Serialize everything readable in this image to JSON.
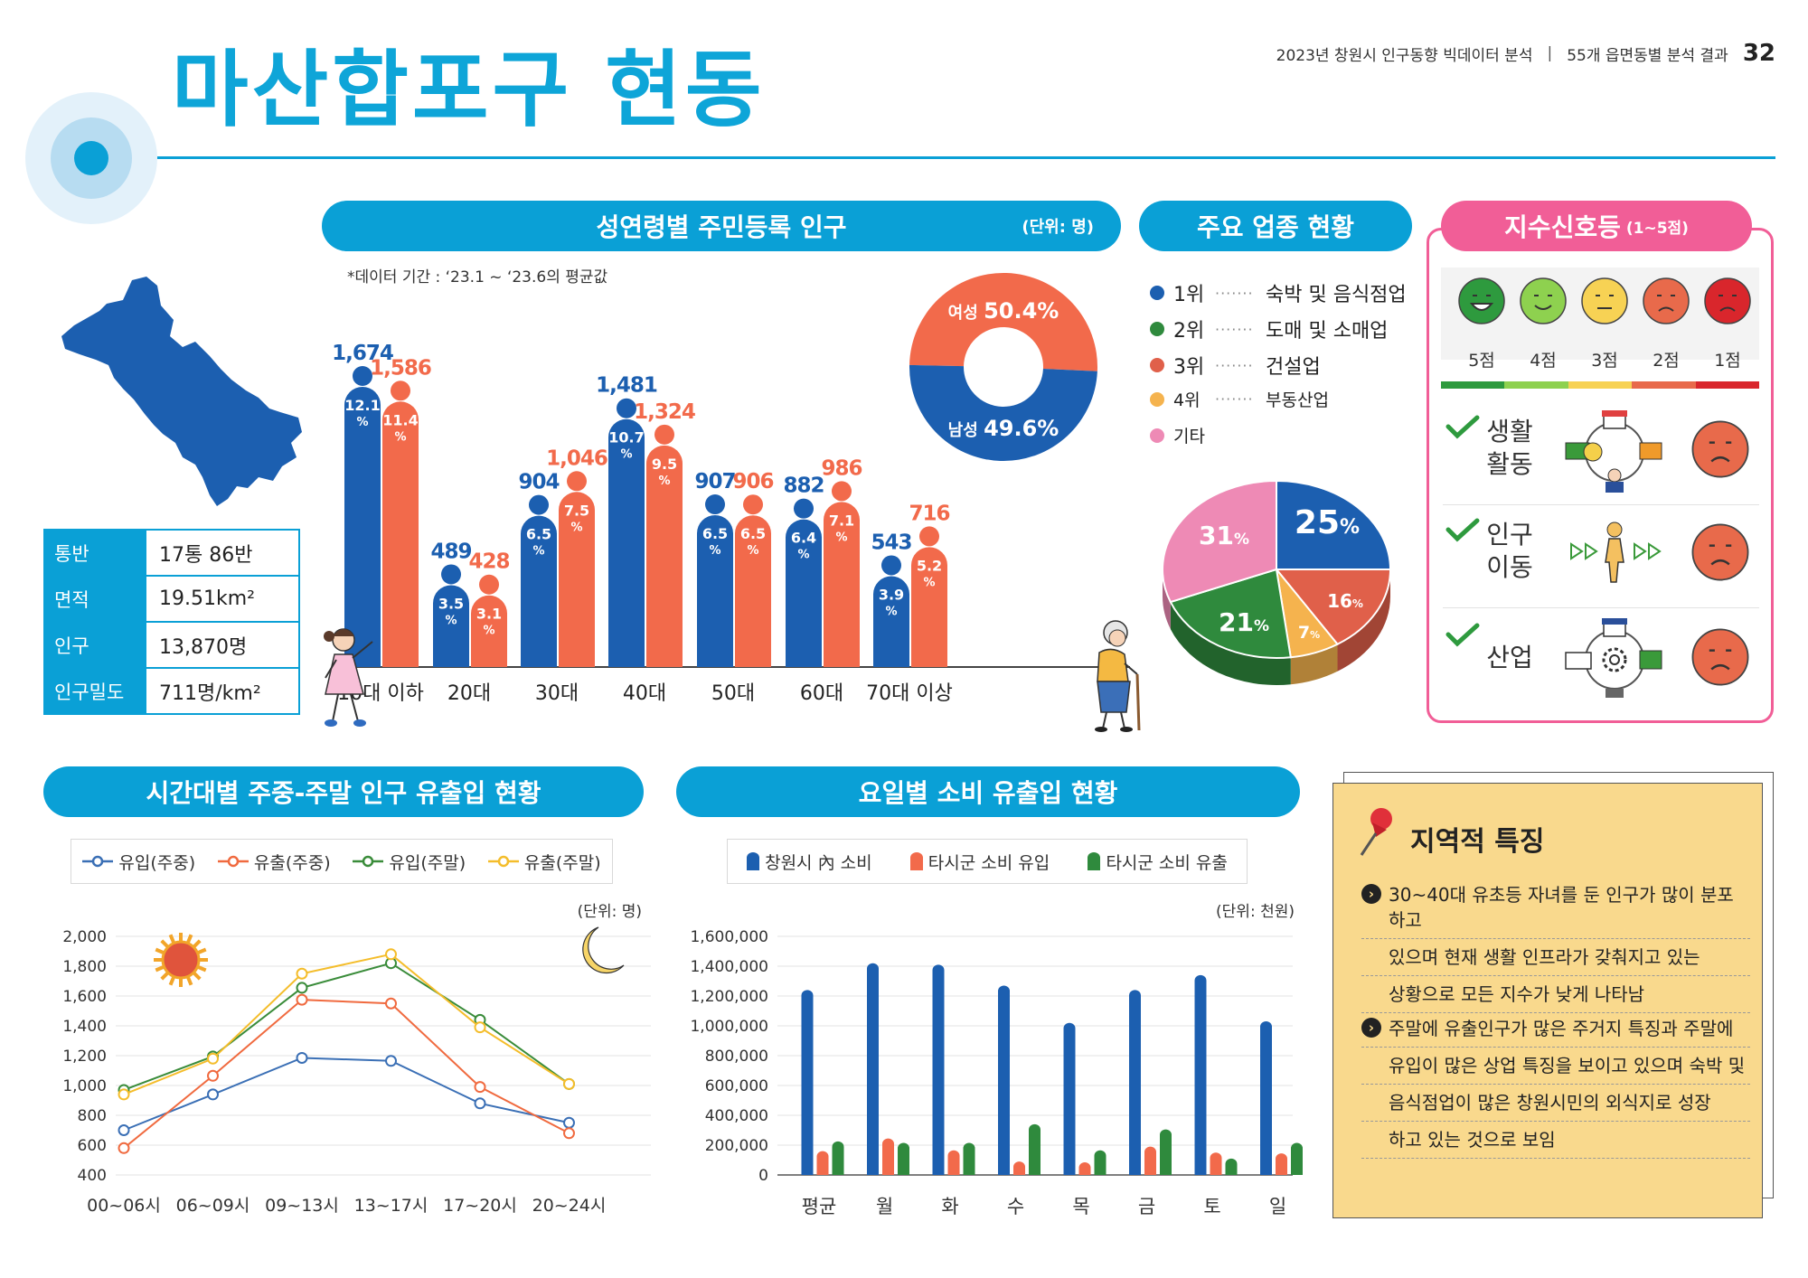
{
  "header": {
    "title": "마산합포구 현동",
    "report": "2023년 창원시 인구동향 빅데이터 분석",
    "separator": "|",
    "section": "55개 읍면동별 분석 결과",
    "page": "32"
  },
  "info": {
    "rows": [
      {
        "key": "통반",
        "value": "17통 86반"
      },
      {
        "key": "면적",
        "value": "19.51km²"
      },
      {
        "key": "인구",
        "value": "13,870명"
      },
      {
        "key": "인구밀도",
        "value": "711명/km²"
      }
    ]
  },
  "population": {
    "title": "성연령별 주민등록 인구",
    "unit": "(단위: 명)",
    "note": "*데이터 기간 : ‘23.1 ~ ‘23.6의 평균값",
    "female_label": "여성",
    "female_pct": "50.4%",
    "male_label": "남성",
    "male_pct": "49.6%"
  },
  "industry": {
    "title": "주요 업종 현황",
    "items": [
      {
        "rank": "1위",
        "name": "숙박 및 음식점업",
        "color": "#1c5fb0"
      },
      {
        "rank": "2위",
        "name": "도매 및 소매업",
        "color": "#2f8a3d"
      },
      {
        "rank": "3위",
        "name": "건설업",
        "color": "#e0604a"
      },
      {
        "rank": "4위",
        "name": "부동산업",
        "color": "#f5b34e"
      },
      {
        "rank": "기타",
        "name": "",
        "color": "#ee8ab5"
      }
    ]
  },
  "signal": {
    "title": "지수신호등",
    "subtitle": "(1~5점)",
    "scores": [
      "5점",
      "4점",
      "3점",
      "2점",
      "1점"
    ],
    "score_colors": [
      "#2e9a3e",
      "#8ed14f",
      "#f7d254",
      "#e86a4b",
      "#d9262c"
    ],
    "rows": [
      {
        "label": "생활\n활동",
        "score": "2점"
      },
      {
        "label": "인구\n이동",
        "score": "2점"
      },
      {
        "label": "산업",
        "score": "2점"
      }
    ]
  },
  "flow": {
    "title": "시간대별 주중-주말 인구 유출입 현황",
    "unit": "(단위: 명)"
  },
  "consumption": {
    "title": "요일별 소비 유출입 현황",
    "unit": "(단위: 천원)"
  },
  "feature": {
    "title": "지역적 특징",
    "para1": [
      "30~40대 유초등 자녀를 둔 인구가 많이 분포하고",
      "있으며 현재 생활 인프라가 갖춰지고 있는",
      "상황으로 모든 지수가 낮게 나타남"
    ],
    "para2": [
      "주말에 유출인구가 많은 주거지 특징과 주말에",
      "유입이 많은 상업 특징을 보이고 있으며 숙박 및",
      "음식점업이 많은  창원시민의 외식지로 성장",
      "하고 있는 것으로 보임"
    ]
  },
  "chart_data": [
    {
      "type": "bar",
      "name": "age-gender",
      "categories": [
        "10대 이하",
        "20대",
        "30대",
        "40대",
        "50대",
        "60대",
        "70대 이상"
      ],
      "series": [
        {
          "name": "남성",
          "color": "#1c5fb0",
          "values": [
            1674,
            489,
            904,
            1481,
            907,
            882,
            543
          ],
          "labels": [
            "1,674",
            "489",
            "904",
            "1,481",
            "907",
            "882",
            "543"
          ],
          "pct": [
            "12.1",
            "3.5",
            "6.5",
            "10.7",
            "6.5",
            "6.4",
            "3.9"
          ]
        },
        {
          "name": "여성",
          "color": "#f26a4b",
          "values": [
            1586,
            428,
            1046,
            1324,
            906,
            986,
            716
          ],
          "labels": [
            "1,586",
            "428",
            "1,046",
            "1,324",
            "906",
            "986",
            "716"
          ],
          "pct": [
            "11.4",
            "3.1",
            "7.5",
            "9.5",
            "6.5",
            "7.1",
            "5.2"
          ]
        }
      ],
      "pct_unit": "%"
    },
    {
      "type": "pie",
      "name": "gender-donut",
      "slices": [
        {
          "label": "여성",
          "value": 50.4,
          "color": "#f26a4b"
        },
        {
          "label": "남성",
          "value": 49.6,
          "color": "#1c5fb0"
        }
      ]
    },
    {
      "type": "pie",
      "name": "industry-pie",
      "slices": [
        {
          "label": "25%",
          "value": 25,
          "color": "#1c5fb0"
        },
        {
          "label": "16%",
          "value": 16,
          "color": "#e0604a"
        },
        {
          "label": "7%",
          "value": 7,
          "color": "#f5b34e"
        },
        {
          "label": "21%",
          "value": 21,
          "color": "#2f8a3d"
        },
        {
          "label": "31%",
          "value": 31,
          "color": "#ee8ab5"
        }
      ]
    },
    {
      "type": "line",
      "name": "time-flow",
      "x": [
        "00~06시",
        "06~09시",
        "09~13시",
        "13~17시",
        "17~20시",
        "20~24시"
      ],
      "ylim": [
        400,
        2000
      ],
      "yticks": [
        "2,000",
        "1,800",
        "1,600",
        "1,400",
        "1,200",
        "1,000",
        "800",
        "600",
        "400"
      ],
      "ytick_values": [
        2000,
        1800,
        1600,
        1400,
        1200,
        1000,
        800,
        600,
        400
      ],
      "series": [
        {
          "name": "유입(주중)",
          "color": "#3a6fb5",
          "values": [
            700,
            940,
            1185,
            1165,
            880,
            750
          ]
        },
        {
          "name": "유출(주중)",
          "color": "#f06a3f",
          "values": [
            580,
            1065,
            1575,
            1550,
            990,
            680
          ]
        },
        {
          "name": "유입(주말)",
          "color": "#3a8c3a",
          "values": [
            970,
            1195,
            1655,
            1820,
            1440,
            1010
          ]
        },
        {
          "name": "유출(주말)",
          "color": "#f4bd2b",
          "values": [
            940,
            1180,
            1750,
            1880,
            1390,
            1010
          ]
        }
      ]
    },
    {
      "type": "bar",
      "name": "weekday-consumption",
      "categories": [
        "평균",
        "월",
        "화",
        "수",
        "목",
        "금",
        "토",
        "일"
      ],
      "ylim": [
        0,
        1600000
      ],
      "yticks": [
        "1,600,000",
        "1,400,000",
        "1,200,000",
        "1,000,000",
        "800,000",
        "600,000",
        "400,000",
        "200,000",
        "0"
      ],
      "ytick_values": [
        1600000,
        1400000,
        1200000,
        1000000,
        800000,
        600000,
        400000,
        200000,
        0
      ],
      "series": [
        {
          "name": "창원시 內 소비",
          "color": "#1c5fb0",
          "values": [
            1240000,
            1420000,
            1410000,
            1270000,
            1020000,
            1240000,
            1340000,
            1030000
          ]
        },
        {
          "name": "타시군 소비 유입",
          "color": "#f26a4b",
          "values": [
            160000,
            245000,
            165000,
            90000,
            85000,
            190000,
            150000,
            145000
          ]
        },
        {
          "name": "타시군 소비 유출",
          "color": "#2f8a3d",
          "values": [
            225000,
            215000,
            215000,
            340000,
            165000,
            305000,
            110000,
            215000
          ]
        }
      ]
    }
  ]
}
